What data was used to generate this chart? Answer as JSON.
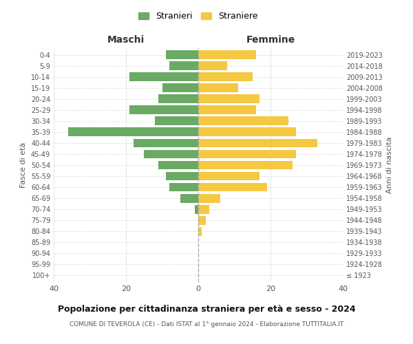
{
  "age_groups": [
    "100+",
    "95-99",
    "90-94",
    "85-89",
    "80-84",
    "75-79",
    "70-74",
    "65-69",
    "60-64",
    "55-59",
    "50-54",
    "45-49",
    "40-44",
    "35-39",
    "30-34",
    "25-29",
    "20-24",
    "15-19",
    "10-14",
    "5-9",
    "0-4"
  ],
  "birth_years": [
    "≤ 1923",
    "1924-1928",
    "1929-1933",
    "1934-1938",
    "1939-1943",
    "1944-1948",
    "1949-1953",
    "1954-1958",
    "1959-1963",
    "1964-1968",
    "1969-1973",
    "1974-1978",
    "1979-1983",
    "1984-1988",
    "1989-1993",
    "1994-1998",
    "1999-2003",
    "2004-2008",
    "2009-2013",
    "2014-2018",
    "2019-2023"
  ],
  "maschi": [
    0,
    0,
    0,
    0,
    0,
    0,
    1,
    5,
    8,
    9,
    11,
    15,
    18,
    36,
    12,
    19,
    11,
    10,
    19,
    8,
    9
  ],
  "femmine": [
    0,
    0,
    0,
    0,
    1,
    2,
    3,
    6,
    19,
    17,
    26,
    27,
    33,
    27,
    25,
    16,
    17,
    11,
    15,
    8,
    16
  ],
  "maschi_color": "#6aaa64",
  "femmine_color": "#f5c842",
  "background_color": "#ffffff",
  "grid_color": "#dddddd",
  "title": "Popolazione per cittadinanza straniera per età e sesso - 2024",
  "subtitle": "COMUNE DI TEVEROLA (CE) - Dati ISTAT al 1° gennaio 2024 - Elaborazione TUTTITALIA.IT",
  "ylabel_left": "Fasce di età",
  "ylabel_right": "Anni di nascita",
  "xlabel_left": "Maschi",
  "xlabel_right": "Femmine",
  "legend_stranieri": "Stranieri",
  "legend_straniere": "Straniere",
  "xlim": 40,
  "bar_height": 0.8
}
